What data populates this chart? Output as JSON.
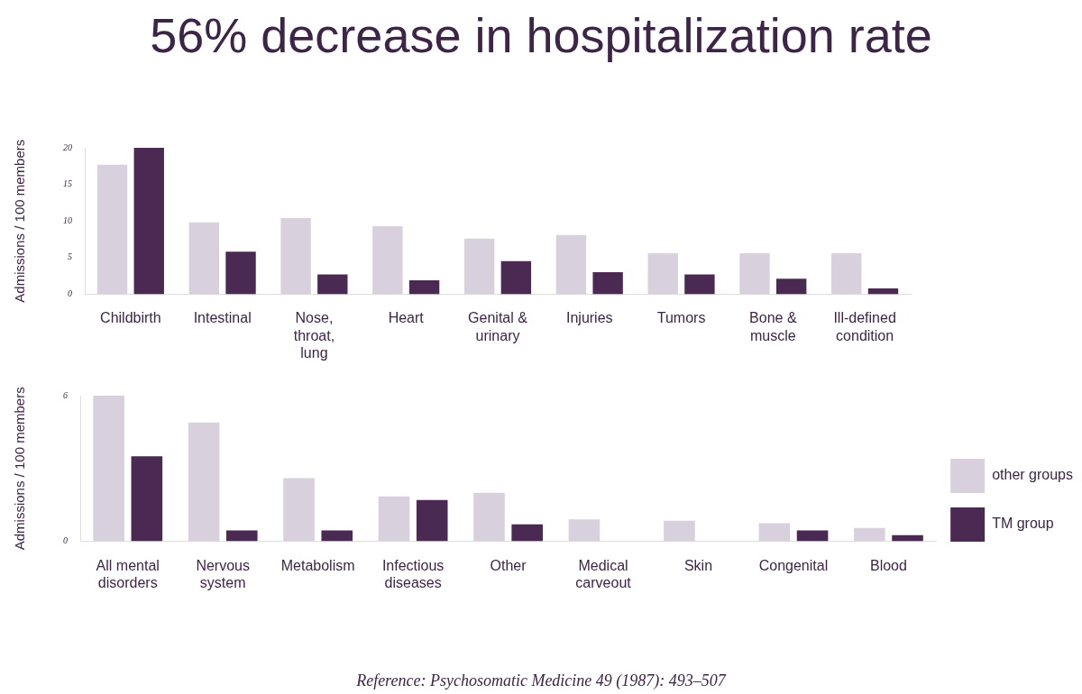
{
  "chart_data": [
    {
      "type": "bar",
      "title": "56% decrease in hospitalization rate",
      "ylabel": "Admissions / 100 members",
      "categories": [
        "Childbirth",
        "Intestinal",
        "Nose, throat, lung",
        "Heart",
        "Genital & urinary",
        "Injuries",
        "Tumors",
        "Bone & muscle",
        "Ill-defined condition"
      ],
      "series": [
        {
          "color": "#d9d0dd",
          "values": [
            17.7,
            9.8,
            10.4,
            9.3,
            7.6,
            8.1,
            5.6,
            5.6,
            5.6
          ]
        },
        {
          "color": "#4a2a52",
          "values": [
            20,
            5.8,
            2.7,
            1.9,
            4.5,
            3.0,
            2.7,
            2.1,
            0.8
          ]
        }
      ],
      "ylim": [
        0,
        20
      ],
      "yticks": [
        0,
        5,
        10,
        15,
        20
      ],
      "grid": false,
      "legend": false
    },
    {
      "type": "bar",
      "ylabel": "Admissions / 100 members",
      "categories": [
        "All mental disorders",
        "Nervous system",
        "Metabolism",
        "Infectious diseases",
        "Other",
        "Medical carveout",
        "Skin",
        "Congenital",
        "Blood"
      ],
      "series": [
        {
          "name": "other groups",
          "color": "#d9d0dd",
          "values": [
            6.0,
            4.9,
            2.6,
            1.85,
            2.0,
            0.9,
            0.85,
            0.75,
            0.55
          ]
        },
        {
          "name": "TM group",
          "color": "#4a2a52",
          "values": [
            3.5,
            0.45,
            0.45,
            1.7,
            0.7,
            0,
            0,
            0.45,
            0.25
          ]
        }
      ],
      "ylim": [
        0,
        6
      ],
      "yticks": [
        0,
        6
      ],
      "grid": false,
      "legend": "right",
      "annotations": [
        "Reference: Psychosomatic Medicine 49 (1987): 493–507"
      ]
    }
  ]
}
